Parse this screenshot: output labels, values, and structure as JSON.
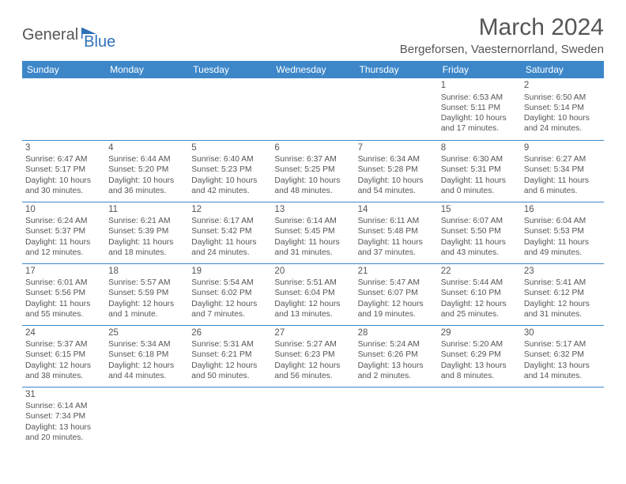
{
  "logo": {
    "text1": "General",
    "text2": "Blue"
  },
  "title": "March 2024",
  "location": "Bergeforsen, Vaesternorrland, Sweden",
  "colors": {
    "header_bg": "#3d87c9",
    "header_fg": "#ffffff",
    "border": "#3d87c9",
    "text": "#555555",
    "logo_accent": "#2f71b8",
    "background": "#ffffff"
  },
  "weekdays": [
    "Sunday",
    "Monday",
    "Tuesday",
    "Wednesday",
    "Thursday",
    "Friday",
    "Saturday"
  ],
  "weeks": [
    [
      null,
      null,
      null,
      null,
      null,
      {
        "n": "1",
        "sr": "Sunrise: 6:53 AM",
        "ss": "Sunset: 5:11 PM",
        "dl": "Daylight: 10 hours and 17 minutes."
      },
      {
        "n": "2",
        "sr": "Sunrise: 6:50 AM",
        "ss": "Sunset: 5:14 PM",
        "dl": "Daylight: 10 hours and 24 minutes."
      }
    ],
    [
      {
        "n": "3",
        "sr": "Sunrise: 6:47 AM",
        "ss": "Sunset: 5:17 PM",
        "dl": "Daylight: 10 hours and 30 minutes."
      },
      {
        "n": "4",
        "sr": "Sunrise: 6:44 AM",
        "ss": "Sunset: 5:20 PM",
        "dl": "Daylight: 10 hours and 36 minutes."
      },
      {
        "n": "5",
        "sr": "Sunrise: 6:40 AM",
        "ss": "Sunset: 5:23 PM",
        "dl": "Daylight: 10 hours and 42 minutes."
      },
      {
        "n": "6",
        "sr": "Sunrise: 6:37 AM",
        "ss": "Sunset: 5:25 PM",
        "dl": "Daylight: 10 hours and 48 minutes."
      },
      {
        "n": "7",
        "sr": "Sunrise: 6:34 AM",
        "ss": "Sunset: 5:28 PM",
        "dl": "Daylight: 10 hours and 54 minutes."
      },
      {
        "n": "8",
        "sr": "Sunrise: 6:30 AM",
        "ss": "Sunset: 5:31 PM",
        "dl": "Daylight: 11 hours and 0 minutes."
      },
      {
        "n": "9",
        "sr": "Sunrise: 6:27 AM",
        "ss": "Sunset: 5:34 PM",
        "dl": "Daylight: 11 hours and 6 minutes."
      }
    ],
    [
      {
        "n": "10",
        "sr": "Sunrise: 6:24 AM",
        "ss": "Sunset: 5:37 PM",
        "dl": "Daylight: 11 hours and 12 minutes."
      },
      {
        "n": "11",
        "sr": "Sunrise: 6:21 AM",
        "ss": "Sunset: 5:39 PM",
        "dl": "Daylight: 11 hours and 18 minutes."
      },
      {
        "n": "12",
        "sr": "Sunrise: 6:17 AM",
        "ss": "Sunset: 5:42 PM",
        "dl": "Daylight: 11 hours and 24 minutes."
      },
      {
        "n": "13",
        "sr": "Sunrise: 6:14 AM",
        "ss": "Sunset: 5:45 PM",
        "dl": "Daylight: 11 hours and 31 minutes."
      },
      {
        "n": "14",
        "sr": "Sunrise: 6:11 AM",
        "ss": "Sunset: 5:48 PM",
        "dl": "Daylight: 11 hours and 37 minutes."
      },
      {
        "n": "15",
        "sr": "Sunrise: 6:07 AM",
        "ss": "Sunset: 5:50 PM",
        "dl": "Daylight: 11 hours and 43 minutes."
      },
      {
        "n": "16",
        "sr": "Sunrise: 6:04 AM",
        "ss": "Sunset: 5:53 PM",
        "dl": "Daylight: 11 hours and 49 minutes."
      }
    ],
    [
      {
        "n": "17",
        "sr": "Sunrise: 6:01 AM",
        "ss": "Sunset: 5:56 PM",
        "dl": "Daylight: 11 hours and 55 minutes."
      },
      {
        "n": "18",
        "sr": "Sunrise: 5:57 AM",
        "ss": "Sunset: 5:59 PM",
        "dl": "Daylight: 12 hours and 1 minute."
      },
      {
        "n": "19",
        "sr": "Sunrise: 5:54 AM",
        "ss": "Sunset: 6:02 PM",
        "dl": "Daylight: 12 hours and 7 minutes."
      },
      {
        "n": "20",
        "sr": "Sunrise: 5:51 AM",
        "ss": "Sunset: 6:04 PM",
        "dl": "Daylight: 12 hours and 13 minutes."
      },
      {
        "n": "21",
        "sr": "Sunrise: 5:47 AM",
        "ss": "Sunset: 6:07 PM",
        "dl": "Daylight: 12 hours and 19 minutes."
      },
      {
        "n": "22",
        "sr": "Sunrise: 5:44 AM",
        "ss": "Sunset: 6:10 PM",
        "dl": "Daylight: 12 hours and 25 minutes."
      },
      {
        "n": "23",
        "sr": "Sunrise: 5:41 AM",
        "ss": "Sunset: 6:12 PM",
        "dl": "Daylight: 12 hours and 31 minutes."
      }
    ],
    [
      {
        "n": "24",
        "sr": "Sunrise: 5:37 AM",
        "ss": "Sunset: 6:15 PM",
        "dl": "Daylight: 12 hours and 38 minutes."
      },
      {
        "n": "25",
        "sr": "Sunrise: 5:34 AM",
        "ss": "Sunset: 6:18 PM",
        "dl": "Daylight: 12 hours and 44 minutes."
      },
      {
        "n": "26",
        "sr": "Sunrise: 5:31 AM",
        "ss": "Sunset: 6:21 PM",
        "dl": "Daylight: 12 hours and 50 minutes."
      },
      {
        "n": "27",
        "sr": "Sunrise: 5:27 AM",
        "ss": "Sunset: 6:23 PM",
        "dl": "Daylight: 12 hours and 56 minutes."
      },
      {
        "n": "28",
        "sr": "Sunrise: 5:24 AM",
        "ss": "Sunset: 6:26 PM",
        "dl": "Daylight: 13 hours and 2 minutes."
      },
      {
        "n": "29",
        "sr": "Sunrise: 5:20 AM",
        "ss": "Sunset: 6:29 PM",
        "dl": "Daylight: 13 hours and 8 minutes."
      },
      {
        "n": "30",
        "sr": "Sunrise: 5:17 AM",
        "ss": "Sunset: 6:32 PM",
        "dl": "Daylight: 13 hours and 14 minutes."
      }
    ],
    [
      {
        "n": "31",
        "sr": "Sunrise: 6:14 AM",
        "ss": "Sunset: 7:34 PM",
        "dl": "Daylight: 13 hours and 20 minutes."
      },
      null,
      null,
      null,
      null,
      null,
      null
    ]
  ]
}
